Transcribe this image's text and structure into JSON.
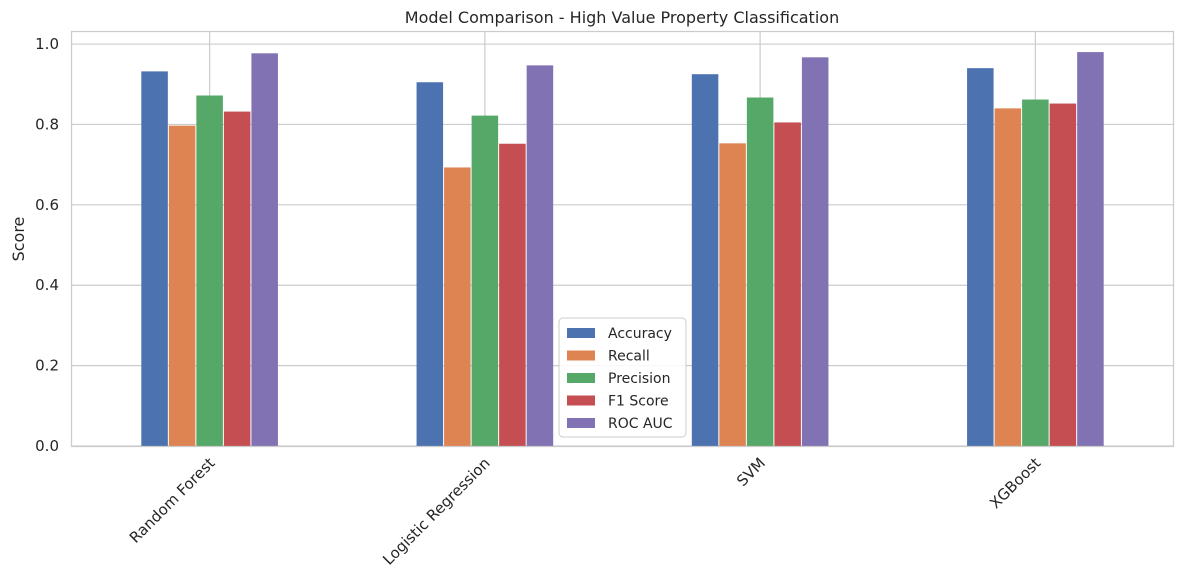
{
  "chart_data": {
    "type": "bar",
    "title": "Model Comparison - High Value Property Classification",
    "xlabel": "",
    "ylabel": "Score",
    "ylim": [
      0,
      1.03
    ],
    "yticks": [
      "0.0",
      "0.2",
      "0.4",
      "0.6",
      "0.8",
      "1.0"
    ],
    "grid": true,
    "legend_position": "lower-center",
    "categories": [
      "Random Forest",
      "Logistic Regression",
      "SVM",
      "XGBoost"
    ],
    "series": [
      {
        "name": "Accuracy",
        "color": "#4c72b0",
        "values": [
          0.932,
          0.905,
          0.925,
          0.94
        ]
      },
      {
        "name": "Recall",
        "color": "#dd8452",
        "values": [
          0.797,
          0.693,
          0.753,
          0.84
        ]
      },
      {
        "name": "Precision",
        "color": "#55a868",
        "values": [
          0.872,
          0.822,
          0.867,
          0.862
        ]
      },
      {
        "name": "F1 Score",
        "color": "#c44e52",
        "values": [
          0.832,
          0.752,
          0.805,
          0.852
        ]
      },
      {
        "name": "ROC AUC",
        "color": "#8172b3",
        "values": [
          0.977,
          0.947,
          0.967,
          0.98
        ]
      }
    ]
  }
}
